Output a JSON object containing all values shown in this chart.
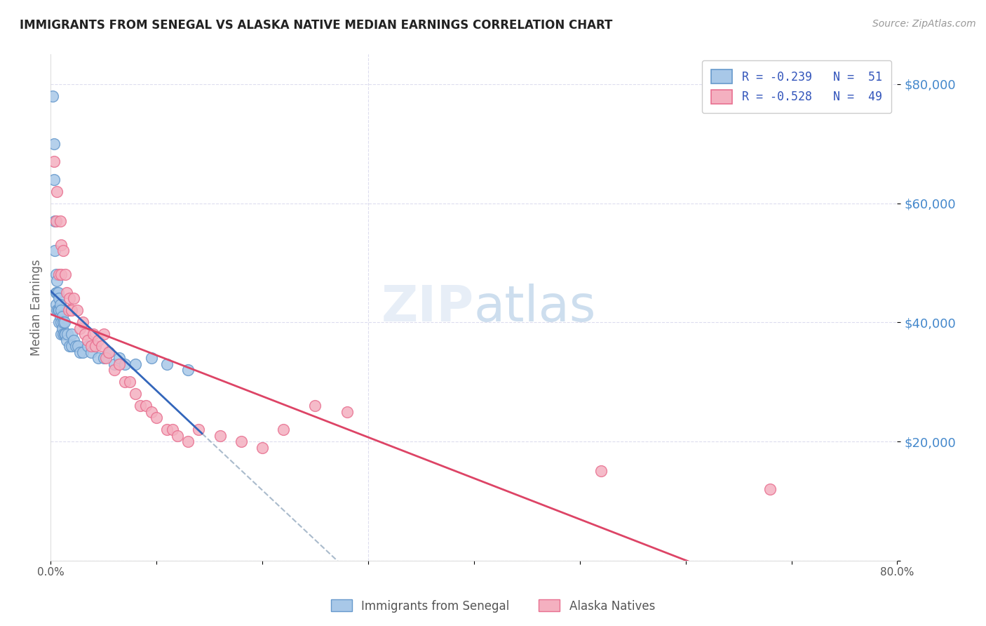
{
  "title": "IMMIGRANTS FROM SENEGAL VS ALASKA NATIVE MEDIAN EARNINGS CORRELATION CHART",
  "source": "Source: ZipAtlas.com",
  "ylabel": "Median Earnings",
  "legend_blue_r": "R = -0.239",
  "legend_blue_n": "N =  51",
  "legend_pink_r": "R = -0.528",
  "legend_pink_n": "N =  49",
  "legend_label_blue": "Immigrants from Senegal",
  "legend_label_pink": "Alaska Natives",
  "blue_color": "#a8c8e8",
  "pink_color": "#f4b0c0",
  "blue_edge": "#6699cc",
  "pink_edge": "#e87090",
  "trend_blue": "#3366bb",
  "trend_pink": "#dd4466",
  "trend_gray": "#aabbcc",
  "xlim": [
    0.0,
    0.8
  ],
  "ylim": [
    0,
    85000
  ],
  "yticks": [
    0,
    20000,
    40000,
    60000,
    80000
  ],
  "ytick_labels": [
    "",
    "$20,000",
    "$40,000",
    "$60,000",
    "$80,000"
  ],
  "blue_x": [
    0.002,
    0.003,
    0.003,
    0.004,
    0.004,
    0.005,
    0.005,
    0.005,
    0.006,
    0.006,
    0.006,
    0.007,
    0.007,
    0.008,
    0.008,
    0.008,
    0.009,
    0.009,
    0.01,
    0.01,
    0.01,
    0.011,
    0.011,
    0.012,
    0.012,
    0.013,
    0.013,
    0.014,
    0.015,
    0.016,
    0.018,
    0.02,
    0.02,
    0.022,
    0.024,
    0.026,
    0.028,
    0.03,
    0.035,
    0.038,
    0.042,
    0.045,
    0.05,
    0.055,
    0.06,
    0.065,
    0.07,
    0.08,
    0.095,
    0.11,
    0.13
  ],
  "blue_y": [
    78000,
    70000,
    64000,
    57000,
    52000,
    48000,
    45000,
    43000,
    47000,
    45000,
    42000,
    45000,
    42000,
    44000,
    42000,
    40000,
    43000,
    41000,
    42000,
    40000,
    38000,
    41000,
    39000,
    40000,
    38000,
    40000,
    38000,
    38000,
    37000,
    38000,
    36000,
    38000,
    36000,
    37000,
    36000,
    36000,
    35000,
    35000,
    36000,
    35000,
    36000,
    34000,
    34000,
    35000,
    33000,
    34000,
    33000,
    33000,
    34000,
    33000,
    32000
  ],
  "pink_x": [
    0.003,
    0.005,
    0.006,
    0.008,
    0.009,
    0.01,
    0.01,
    0.012,
    0.014,
    0.015,
    0.017,
    0.018,
    0.02,
    0.022,
    0.025,
    0.028,
    0.03,
    0.032,
    0.035,
    0.038,
    0.04,
    0.042,
    0.045,
    0.048,
    0.05,
    0.052,
    0.055,
    0.06,
    0.065,
    0.07,
    0.075,
    0.08,
    0.085,
    0.09,
    0.095,
    0.1,
    0.11,
    0.115,
    0.12,
    0.13,
    0.14,
    0.16,
    0.18,
    0.2,
    0.22,
    0.25,
    0.28,
    0.52,
    0.68
  ],
  "pink_y": [
    67000,
    57000,
    62000,
    48000,
    57000,
    53000,
    48000,
    52000,
    48000,
    45000,
    42000,
    44000,
    42000,
    44000,
    42000,
    39000,
    40000,
    38000,
    37000,
    36000,
    38000,
    36000,
    37000,
    36000,
    38000,
    34000,
    35000,
    32000,
    33000,
    30000,
    30000,
    28000,
    26000,
    26000,
    25000,
    24000,
    22000,
    22000,
    21000,
    20000,
    22000,
    21000,
    20000,
    19000,
    22000,
    26000,
    25000,
    15000,
    12000
  ]
}
